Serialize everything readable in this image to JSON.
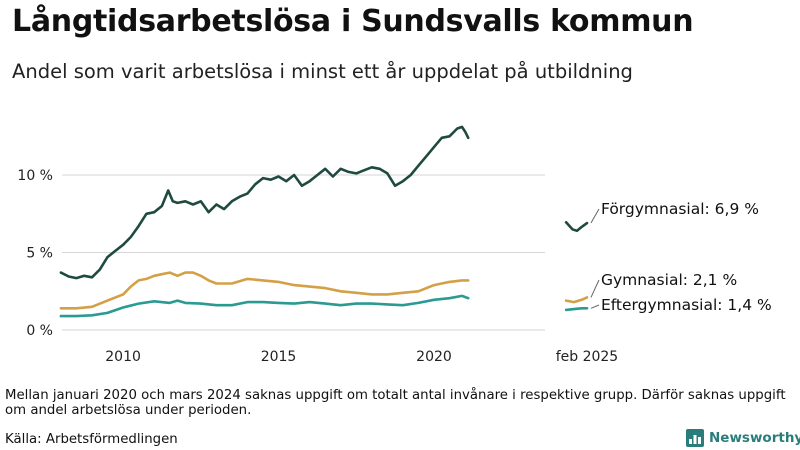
{
  "header": {
    "title": "Långtidsarbetslösa i Sundsvalls kommun",
    "subtitle": "Andel som varit arbetslösa i minst ett år uppdelat på utbildning"
  },
  "footer": {
    "note": "Mellan januari 2020 och mars 2024 saknas uppgift om totalt antal invånare i respektive grupp. Därför saknas uppgift om andel arbetslösa under perioden.",
    "source": "Källa: Arbetsförmedlingen",
    "brand": "Newsworthy",
    "brand_color": "#2a7d7b"
  },
  "chart_data": {
    "type": "line",
    "xlim": [
      2008.1,
      2025.5
    ],
    "ylim": [
      0,
      14
    ],
    "x_ticks": [
      {
        "value": 2010,
        "label": "2010"
      },
      {
        "value": 2015,
        "label": "2015"
      },
      {
        "value": 2020,
        "label": "2020"
      },
      {
        "value": 2024.92,
        "label": "feb 2025"
      }
    ],
    "y_ticks": [
      {
        "value": 0,
        "label": "0 %"
      },
      {
        "value": 5,
        "label": "5 %"
      },
      {
        "value": 10,
        "label": "10 %"
      }
    ],
    "series": [
      {
        "name": "Förgymnasial",
        "end_label": "Förgymnasial: 6,9 %",
        "color": "#1f4a40",
        "segments": [
          [
            [
              2008.0,
              3.7
            ],
            [
              2008.25,
              3.45
            ],
            [
              2008.5,
              3.35
            ],
            [
              2008.75,
              3.5
            ],
            [
              2009.0,
              3.4
            ],
            [
              2009.25,
              3.9
            ],
            [
              2009.5,
              4.7
            ],
            [
              2009.75,
              5.1
            ],
            [
              2010.0,
              5.5
            ],
            [
              2010.25,
              6.0
            ],
            [
              2010.5,
              6.7
            ],
            [
              2010.75,
              7.5
            ],
            [
              2011.0,
              7.6
            ],
            [
              2011.25,
              8.0
            ],
            [
              2011.45,
              9.0
            ],
            [
              2011.6,
              8.3
            ],
            [
              2011.75,
              8.2
            ],
            [
              2012.0,
              8.3
            ],
            [
              2012.25,
              8.1
            ],
            [
              2012.5,
              8.3
            ],
            [
              2012.75,
              7.6
            ],
            [
              2013.0,
              8.1
            ],
            [
              2013.25,
              7.8
            ],
            [
              2013.5,
              8.3
            ],
            [
              2013.75,
              8.6
            ],
            [
              2014.0,
              8.8
            ],
            [
              2014.25,
              9.4
            ],
            [
              2014.5,
              9.8
            ],
            [
              2014.75,
              9.7
            ],
            [
              2015.0,
              9.9
            ],
            [
              2015.25,
              9.6
            ],
            [
              2015.5,
              10.0
            ],
            [
              2015.75,
              9.3
            ],
            [
              2016.0,
              9.6
            ],
            [
              2016.25,
              10.0
            ],
            [
              2016.5,
              10.4
            ],
            [
              2016.75,
              9.9
            ],
            [
              2017.0,
              10.4
            ],
            [
              2017.25,
              10.2
            ],
            [
              2017.5,
              10.1
            ],
            [
              2017.75,
              10.3
            ],
            [
              2018.0,
              10.5
            ],
            [
              2018.25,
              10.4
            ],
            [
              2018.5,
              10.1
            ],
            [
              2018.75,
              9.3
            ],
            [
              2019.0,
              9.6
            ],
            [
              2019.25,
              10.0
            ],
            [
              2019.5,
              10.6
            ],
            [
              2019.75,
              11.2
            ],
            [
              2020.0,
              11.8
            ],
            [
              2020.25,
              12.4
            ],
            [
              2020.5,
              12.5
            ],
            [
              2020.75,
              13.0
            ],
            [
              2020.9,
              13.1
            ],
            [
              2021.0,
              12.8
            ],
            [
              2021.1,
              12.4
            ]
          ],
          [
            [
              2024.25,
              6.95
            ],
            [
              2024.45,
              6.5
            ],
            [
              2024.6,
              6.4
            ],
            [
              2024.75,
              6.65
            ],
            [
              2024.92,
              6.9
            ]
          ]
        ]
      },
      {
        "name": "Gymnasial",
        "end_label": "Gymnasial: 2,1 %",
        "color": "#d4a047",
        "segments": [
          [
            [
              2008.0,
              1.4
            ],
            [
              2008.5,
              1.4
            ],
            [
              2009.0,
              1.5
            ],
            [
              2009.5,
              1.9
            ],
            [
              2010.0,
              2.3
            ],
            [
              2010.25,
              2.8
            ],
            [
              2010.5,
              3.2
            ],
            [
              2010.75,
              3.3
            ],
            [
              2011.0,
              3.5
            ],
            [
              2011.25,
              3.6
            ],
            [
              2011.5,
              3.7
            ],
            [
              2011.75,
              3.5
            ],
            [
              2012.0,
              3.7
            ],
            [
              2012.25,
              3.7
            ],
            [
              2012.5,
              3.5
            ],
            [
              2012.75,
              3.2
            ],
            [
              2013.0,
              3.0
            ],
            [
              2013.5,
              3.0
            ],
            [
              2014.0,
              3.3
            ],
            [
              2014.5,
              3.2
            ],
            [
              2015.0,
              3.1
            ],
            [
              2015.5,
              2.9
            ],
            [
              2016.0,
              2.8
            ],
            [
              2016.5,
              2.7
            ],
            [
              2017.0,
              2.5
            ],
            [
              2017.5,
              2.4
            ],
            [
              2018.0,
              2.3
            ],
            [
              2018.5,
              2.3
            ],
            [
              2019.0,
              2.4
            ],
            [
              2019.5,
              2.5
            ],
            [
              2020.0,
              2.9
            ],
            [
              2020.5,
              3.1
            ],
            [
              2020.9,
              3.2
            ],
            [
              2021.1,
              3.2
            ]
          ],
          [
            [
              2024.25,
              1.9
            ],
            [
              2024.5,
              1.8
            ],
            [
              2024.75,
              1.95
            ],
            [
              2024.92,
              2.1
            ]
          ]
        ]
      },
      {
        "name": "Eftergymnasial",
        "end_label": "Eftergymnasial: 1,4 %",
        "color": "#2a9a92",
        "segments": [
          [
            [
              2008.0,
              0.9
            ],
            [
              2008.5,
              0.9
            ],
            [
              2009.0,
              0.95
            ],
            [
              2009.5,
              1.1
            ],
            [
              2010.0,
              1.45
            ],
            [
              2010.5,
              1.7
            ],
            [
              2011.0,
              1.85
            ],
            [
              2011.5,
              1.75
            ],
            [
              2011.75,
              1.9
            ],
            [
              2012.0,
              1.75
            ],
            [
              2012.5,
              1.7
            ],
            [
              2013.0,
              1.6
            ],
            [
              2013.5,
              1.6
            ],
            [
              2014.0,
              1.8
            ],
            [
              2014.5,
              1.8
            ],
            [
              2015.0,
              1.75
            ],
            [
              2015.5,
              1.7
            ],
            [
              2016.0,
              1.8
            ],
            [
              2016.5,
              1.7
            ],
            [
              2017.0,
              1.6
            ],
            [
              2017.5,
              1.7
            ],
            [
              2018.0,
              1.7
            ],
            [
              2018.5,
              1.65
            ],
            [
              2019.0,
              1.6
            ],
            [
              2019.5,
              1.75
            ],
            [
              2020.0,
              1.95
            ],
            [
              2020.5,
              2.05
            ],
            [
              2020.9,
              2.2
            ],
            [
              2021.1,
              2.05
            ]
          ],
          [
            [
              2024.25,
              1.3
            ],
            [
              2024.5,
              1.35
            ],
            [
              2024.75,
              1.4
            ],
            [
              2024.92,
              1.4
            ]
          ]
        ]
      }
    ]
  }
}
